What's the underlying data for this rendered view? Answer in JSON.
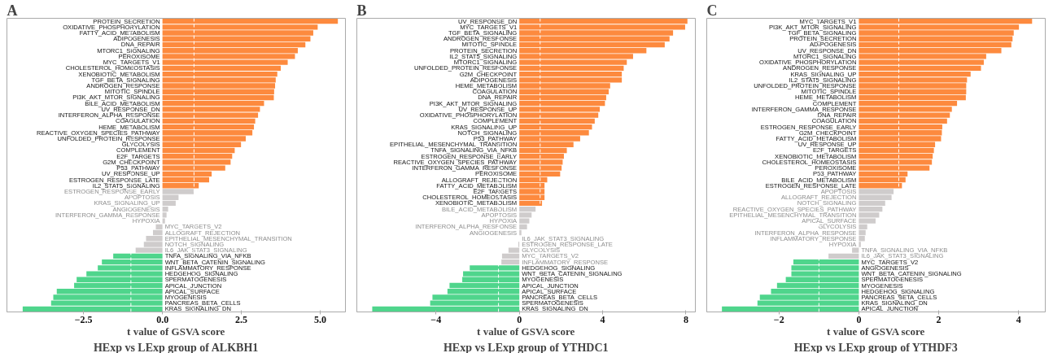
{
  "chart_data": [
    {
      "type": "bar",
      "orientation": "horizontal",
      "title": "A",
      "xlabel": "t value of GSVA score",
      "annotations": [
        "HExp vs LExp group of ALKBH1"
      ],
      "categories": [
        "PROTEIN_SECRETION",
        "OXIDATIVE_PHOSPHORYLATION",
        "FATTY_ACID_METABOLISM",
        "ADIPOGENESIS",
        "DNA_REPAIR",
        "MTORC1_SIGNALING",
        "PEROXISOME",
        "MYC_TARGETS_V1",
        "CHOLESTEROL_HOMEOSTASIS",
        "XENOBIOTIC_METABOLISM",
        "TGF_BETA_SIGNALING",
        "ANDROGEN_RESPONSE",
        "MITOTIC_SPINDLE",
        "PI3K_AKT_MTOR_SIGNALING",
        "BILE_ACID_METABOLISM",
        "UV_RESPONSE_DN",
        "INTERFERON_ALPHA_RESPONSE",
        "COAGULATION",
        "HEME_METABOLISM",
        "REACTIVE_OXYGEN_SPECIES_PATHWAY",
        "UNFOLDED_PROTEIN_RESPONSE",
        "GLYCOLYSIS",
        "COMPLEMENT",
        "E2F_TARGETS",
        "G2M_CHECKPOINT",
        "P53_PATHWAY",
        "UV_RESPONSE_UP",
        "ESTROGEN_RESPONSE_LATE",
        "IL2_STAT5_SIGNALING",
        "ESTROGEN_RESPONSE_EARLY",
        "APOPTOSIS",
        "KRAS_SIGNALING_UP",
        "ANGIOGENESIS",
        "INTERFERON_GAMMA_RESPONSE",
        "HYPOXIA",
        "MYC_TARGETS_V2",
        "ALLOGRAFT_REJECTION",
        "EPITHELIAL_MESENCHYMAL_TRANSITION",
        "NOTCH_SIGNALING",
        "IL6_JAK_STAT3_SIGNALING",
        "TNFA_SIGNALING_VIA_NFKB",
        "WNT_BETA_CATENIN_SIGNALING",
        "INFLAMMATORY_RESPONSE",
        "HEDGEHOG_SIGNALING",
        "SPERMATOGENESIS",
        "APICAL_JUNCTION",
        "APICAL_SURFACE",
        "MYOGENESIS",
        "PANCREAS_BETA_CELLS",
        "KRAS_SIGNALING_DN"
      ],
      "values": [
        5.56,
        4.92,
        4.78,
        4.69,
        4.53,
        4.29,
        4.2,
        3.97,
        3.75,
        3.64,
        3.59,
        3.57,
        3.54,
        3.53,
        3.22,
        3.09,
        3.03,
        2.94,
        2.9,
        2.85,
        2.64,
        2.49,
        2.29,
        2.21,
        2.16,
        1.99,
        1.56,
        1.48,
        1.15,
        0.99,
        0.51,
        0.42,
        0.18,
        0.13,
        0.08,
        -0.21,
        -0.3,
        -0.52,
        -0.59,
        -0.85,
        -1.56,
        -1.92,
        -2.05,
        -2.41,
        -2.72,
        -2.8,
        -3.35,
        -3.46,
        -3.53,
        -4.43
      ],
      "colors": [
        "#fd8a3e",
        "#fd8a3e",
        "#fd8a3e",
        "#fd8a3e",
        "#fd8a3e",
        "#fd8a3e",
        "#fd8a3e",
        "#fd8a3e",
        "#fd8a3e",
        "#fd8a3e",
        "#fd8a3e",
        "#fd8a3e",
        "#fd8a3e",
        "#fd8a3e",
        "#fd8a3e",
        "#fd8a3e",
        "#fd8a3e",
        "#fd8a3e",
        "#fd8a3e",
        "#fd8a3e",
        "#fd8a3e",
        "#fd8a3e",
        "#fd8a3e",
        "#fd8a3e",
        "#fd8a3e",
        "#fd8a3e",
        "#fd8a3e",
        "#fd8a3e",
        "#fd8a3e",
        "#cfcccc",
        "#cfcccc",
        "#cfcccc",
        "#cfcccc",
        "#cfcccc",
        "#cfcccc",
        "#cfcccc",
        "#cfcccc",
        "#cfcccc",
        "#cfcccc",
        "#cfcccc",
        "#4fd58c",
        "#4fd58c",
        "#4fd58c",
        "#4fd58c",
        "#4fd58c",
        "#4fd58c",
        "#4fd58c",
        "#4fd58c",
        "#4fd58c",
        "#4fd58c"
      ],
      "xlim": [
        -4.93,
        5.8
      ],
      "xticks": [
        -2.5,
        {
          "value": 0,
          "label": "0.0"
        },
        2.5,
        {
          "value": 5,
          "label": "5.0"
        }
      ],
      "ref_lines": [
        {
          "axis": "x",
          "value": -1,
          "color": "#ffffff",
          "line_style": "dashed"
        },
        {
          "axis": "x",
          "value": 1,
          "color": "#ffffff",
          "line_style": "dashed"
        }
      ]
    },
    {
      "type": "bar",
      "orientation": "horizontal",
      "title": "B",
      "xlabel": "t value of GSVA score",
      "annotations": [
        "HExp vs LExp group of YTHDC1"
      ],
      "categories": [
        "UV_RESPONSE_DN",
        "MYC_TARGETS_V1",
        "TGF_BETA_SIGNALING",
        "ANDROGEN_RESPONSE",
        "MITOTIC_SPINDLE",
        "PROTEIN_SECRETION",
        "IL2_STAT5_SIGNALING",
        "MTORC1_SIGNALING",
        "UNFOLDED_PROTEIN_RESPONSE",
        "G2M_CHECKPOINT",
        "ADIPOGENESIS",
        "HEME_METABOLISM",
        "COAGULATION",
        "DNA_REPAIR",
        "PI3K_AKT_MTOR_SIGNALING",
        "UV_RESPONSE_UP",
        "OXIDATIVE_PHOSPHORYLATION",
        "COMPLEMENT",
        "KRAS_SIGNALING_UP",
        "NOTCH_SIGNALING",
        "P53_PATHWAY",
        "EPITHELIAL_MESENCHYMAL_TRANSITION",
        "TNFA_SIGNALING_VIA_NFKB",
        "ESTROGEN_RESPONSE_EARLY",
        "REACTIVE_OXYGEN_SPECIES_PATHWAY",
        "INTERFERON_GAMMA_RESPONSE",
        "PEROXISOME",
        "ALLOGRAFT_REJECTION",
        "FATTY_ACID_METABOLISM",
        "E2F_TARGETS",
        "CHOLESTEROL_HOMEOSTASIS",
        "XENOBIOTIC_METABOLISM",
        "BILE_ACID_METABOLISM",
        "APOPTOSIS",
        "HYPOXIA",
        "INTERFERON_ALPHA_RESPONSE",
        "ANGIOGENESIS",
        "IL6_JAK_STAT3_SIGNALING",
        "ESTROGEN_RESPONSE_LATE",
        "GLYCOLYSIS",
        "MYC_TARGETS_V2",
        "INFLAMMATORY_RESPONSE",
        "HEDGEHOG_SIGNALING",
        "WNT_BETA_CATENIN_SIGNALING",
        "MYOGENESIS",
        "APICAL_JUNCTION",
        "APICAL_SURFACE",
        "PANCREAS_BETA_CELLS",
        "SPERMATOGENESIS",
        "KRAS_SIGNALING_DN"
      ],
      "values": [
        8.07,
        7.96,
        7.38,
        7.21,
        6.98,
        6.1,
        5.46,
        5.16,
        5.01,
        4.92,
        4.92,
        4.36,
        4.29,
        4.17,
        4.11,
        3.86,
        3.79,
        3.62,
        3.49,
        3.34,
        2.92,
        2.6,
        2.28,
        2.14,
        2.08,
        2.03,
        1.96,
        1.34,
        1.21,
        1.21,
        1.21,
        1.09,
        0.78,
        0.59,
        0.48,
        0.37,
        0.1,
        null,
        -0.05,
        -0.52,
        -0.83,
        -0.86,
        -2.38,
        -2.7,
        -2.74,
        -3.35,
        -3.45,
        -4.17,
        -4.28,
        -7.06
      ],
      "colors": [
        "#fd8a3e",
        "#fd8a3e",
        "#fd8a3e",
        "#fd8a3e",
        "#fd8a3e",
        "#fd8a3e",
        "#fd8a3e",
        "#fd8a3e",
        "#fd8a3e",
        "#fd8a3e",
        "#fd8a3e",
        "#fd8a3e",
        "#fd8a3e",
        "#fd8a3e",
        "#fd8a3e",
        "#fd8a3e",
        "#fd8a3e",
        "#fd8a3e",
        "#fd8a3e",
        "#fd8a3e",
        "#fd8a3e",
        "#fd8a3e",
        "#fd8a3e",
        "#fd8a3e",
        "#fd8a3e",
        "#fd8a3e",
        "#fd8a3e",
        "#fd8a3e",
        "#fd8a3e",
        "#fd8a3e",
        "#fd8a3e",
        "#fd8a3e",
        "#cfcccc",
        "#cfcccc",
        "#cfcccc",
        "#cfcccc",
        "#cfcccc",
        "#cfcccc",
        "#cfcccc",
        "#cfcccc",
        "#cfcccc",
        "#cfcccc",
        "#4fd58c",
        "#4fd58c",
        "#4fd58c",
        "#4fd58c",
        "#4fd58c",
        "#4fd58c",
        "#4fd58c",
        "#4fd58c"
      ],
      "xlim": [
        -7.8,
        8.45
      ],
      "xticks": [
        -4,
        0,
        4,
        8
      ],
      "ref_lines": [
        {
          "axis": "x",
          "value": -1,
          "color": "#ffffff",
          "line_style": "dashed"
        },
        {
          "axis": "x",
          "value": 1,
          "color": "#ffffff",
          "line_style": "dashed"
        }
      ]
    },
    {
      "type": "bar",
      "orientation": "horizontal",
      "title": "C",
      "xlabel": "t value of GSVA score",
      "annotations": [
        "HExp vs LExp group of YTHDF3"
      ],
      "categories": [
        "MYC_TARGETS_V1",
        "PI3K_AKT_MTOR_SIGNALING",
        "TGF_BETA_SIGNALING",
        "PROTEIN_SECRETION",
        "ADIPOGENESIS",
        "UV_RESPONSE_DN",
        "MTORC1_SIGNALING",
        "OXIDATIVE_PHOSPHORYLATION",
        "ANDROGEN_RESPONSE",
        "KRAS_SIGNALING_UP",
        "IL2_STAT5_SIGNALING",
        "UNFOLDED_PROTEIN_RESPONSE",
        "MITOTIC_SPINDLE",
        "HEME_METABOLISM",
        "COMPLEMENT",
        "INTERFERON_GAMMA_RESPONSE",
        "DNA_REPAIR",
        "COAGULATION",
        "ESTROGEN_RESPONSE_EARLY",
        "G2M_CHECKPOINT",
        "FATTY_ACID_METABOLISM",
        "UV_RESPONSE_UP",
        "E2F_TARGETS",
        "XENOBIOTIC_METABOLISM",
        "CHOLESTEROL_HOMEOSTASIS",
        "PEROXISOME",
        "P53_PATHWAY",
        "BILE_ACID_METABOLISM",
        "ESTROGEN_RESPONSE_LATE",
        "APOPTOSIS",
        "ALLOGRAFT_REJECTION",
        "NOTCH_SIGNALING",
        "REACTIVE_OXYGEN_SPECIES_PATHWAY",
        "EPITHELIAL_MESENCHYMAL_TRANSITION",
        "APICAL_SURFACE",
        "GLYCOLYSIS",
        "INTERFERON_ALPHA_RESPONSE",
        "INFLAMMATORY_RESPONSE",
        "HYPOXIA",
        "TNFA_SIGNALING_VIA_NFKB",
        "IL6_JAK_STAT3_SIGNALING",
        "MYC_TARGETS_V2",
        "ANGIOGENESIS",
        "WNT_BETA_CATENIN_SIGNALING",
        "SPERMATOGENESIS",
        "MYOGENESIS",
        "HEDGEHOG_SIGNALING",
        "PANCREAS_BETA_CELLS",
        "KRAS_SIGNALING_DN",
        "APICAL_JUNCTION"
      ],
      "values": [
        4.34,
        4.01,
        3.88,
        3.85,
        3.82,
        3.57,
        3.19,
        3.13,
        3.06,
        2.8,
        2.71,
        2.69,
        2.69,
        2.68,
        2.46,
        2.33,
        2.28,
        2.21,
        2.09,
        2.08,
        2.06,
        1.91,
        1.88,
        1.85,
        1.83,
        1.77,
        1.22,
        1.17,
        1.08,
        0.87,
        0.82,
        0.66,
        0.59,
        0.51,
        0.42,
        0.21,
        0.17,
        0.15,
        0.05,
        -0.17,
        -0.76,
        -1.64,
        -1.69,
        -1.69,
        -1.83,
        -2.05,
        -2.2,
        -2.48,
        -2.54,
        -3.43
      ],
      "colors": [
        "#fd8a3e",
        "#fd8a3e",
        "#fd8a3e",
        "#fd8a3e",
        "#fd8a3e",
        "#fd8a3e",
        "#fd8a3e",
        "#fd8a3e",
        "#fd8a3e",
        "#fd8a3e",
        "#fd8a3e",
        "#fd8a3e",
        "#fd8a3e",
        "#fd8a3e",
        "#fd8a3e",
        "#fd8a3e",
        "#fd8a3e",
        "#fd8a3e",
        "#fd8a3e",
        "#fd8a3e",
        "#fd8a3e",
        "#fd8a3e",
        "#fd8a3e",
        "#fd8a3e",
        "#fd8a3e",
        "#fd8a3e",
        "#fd8a3e",
        "#fd8a3e",
        "#fd8a3e",
        "#cfcccc",
        "#cfcccc",
        "#cfcccc",
        "#cfcccc",
        "#cfcccc",
        "#cfcccc",
        "#cfcccc",
        "#cfcccc",
        "#cfcccc",
        "#cfcccc",
        "#cfcccc",
        "#cfcccc",
        "#4fd58c",
        "#4fd58c",
        "#4fd58c",
        "#4fd58c",
        "#4fd58c",
        "#4fd58c",
        "#4fd58c",
        "#4fd58c",
        "#4fd58c"
      ],
      "xlim": [
        -3.81,
        4.67
      ],
      "xticks": [
        -2,
        0,
        2,
        4
      ],
      "ref_lines": [
        {
          "axis": "x",
          "value": -1,
          "color": "#ffffff",
          "line_style": "dashed"
        },
        {
          "axis": "x",
          "value": 1,
          "color": "#ffffff",
          "line_style": "dashed"
        }
      ]
    }
  ]
}
